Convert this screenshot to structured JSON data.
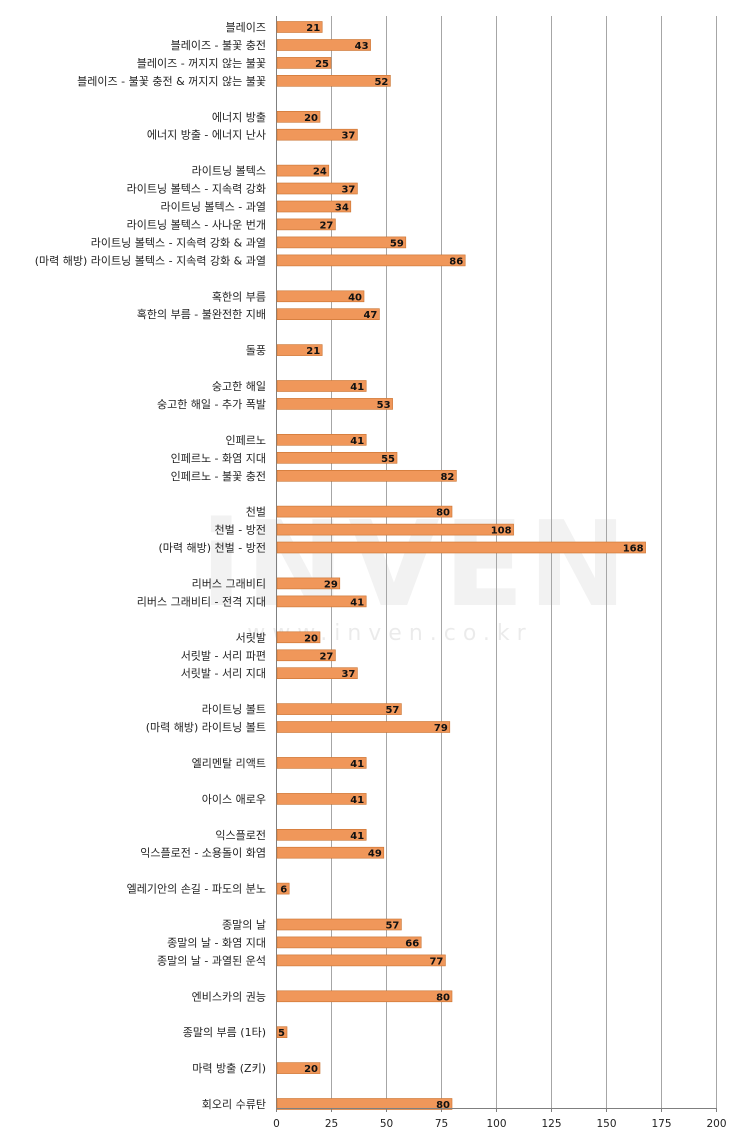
{
  "watermark": {
    "brand": "iNVEN",
    "url": "www.inven.co.kr"
  },
  "colors": {
    "bar": "#F0975A",
    "bar_stroke": "#C9722F",
    "grid": "#A6A6A6",
    "axis": "#7F7F7F"
  },
  "chart_data": {
    "type": "bar",
    "orientation": "horizontal",
    "title": "",
    "xlabel": "",
    "ylabel": "",
    "xlim": [
      0,
      200
    ],
    "xticks": [
      0,
      25,
      50,
      75,
      100,
      125,
      150,
      175,
      200
    ],
    "grid": true,
    "legend": "none",
    "categories": [
      "블레이즈",
      "블레이즈 - 불꽃 충전",
      "블레이즈 - 꺼지지 않는 불꽃",
      "블레이즈 - 불꽃 충전 & 꺼지지 않는 불꽃",
      "",
      "에너지 방출",
      "에너지 방출 - 에너지 난사",
      "",
      "라이트닝 볼텍스",
      "라이트닝 볼텍스 - 지속력 강화",
      "라이트닝 볼텍스 - 과열",
      "라이트닝 볼텍스 - 사나운 번개",
      "라이트닝 볼텍스 - 지속력 강화 & 과열",
      "(마력 해방) 라이트닝 볼텍스 - 지속력 강화 & 과열",
      "",
      "혹한의 부름",
      "혹한의 부름 - 불완전한 지배",
      "",
      "돌풍",
      "",
      "숭고한 해일",
      "숭고한 해일 - 추가 폭발",
      "",
      "인페르노",
      "인페르노 - 화염 지대",
      "인페르노 - 불꽃 충전",
      "",
      "천벌",
      "천벌 - 방전",
      "(마력 해방) 천벌 - 방전",
      "",
      "리버스 그래비티",
      "리버스 그래비티 - 전격 지대",
      "",
      "서릿발",
      "서릿발 - 서리 파편",
      "서릿발 - 서리 지대",
      "",
      "라이트닝 볼트",
      "(마력 해방) 라이트닝 볼트",
      "",
      "엘리멘탈 리액트",
      "",
      "아이스 애로우",
      "",
      "익스플로전",
      "익스플로전 - 소용돌이 화염",
      "",
      "엘레기안의 손길 - 파도의 분노",
      "",
      "종말의 날",
      "종말의 날 - 화염 지대",
      "종말의 날 - 과열된 운석",
      "",
      "엔비스카의 권능",
      "",
      "종말의 부름 (1타)",
      "",
      "마력 방출 (Z키)",
      "",
      "회오리 수류탄"
    ],
    "values": [
      21,
      43,
      25,
      52,
      null,
      20,
      37,
      null,
      24,
      37,
      34,
      27,
      59,
      86,
      null,
      40,
      47,
      null,
      21,
      null,
      41,
      53,
      null,
      41,
      55,
      82,
      null,
      80,
      108,
      168,
      null,
      29,
      41,
      null,
      20,
      27,
      37,
      null,
      57,
      79,
      null,
      41,
      null,
      41,
      null,
      41,
      49,
      null,
      6,
      null,
      57,
      66,
      77,
      null,
      80,
      null,
      5,
      null,
      20,
      null,
      80
    ],
    "data_labels": true
  }
}
